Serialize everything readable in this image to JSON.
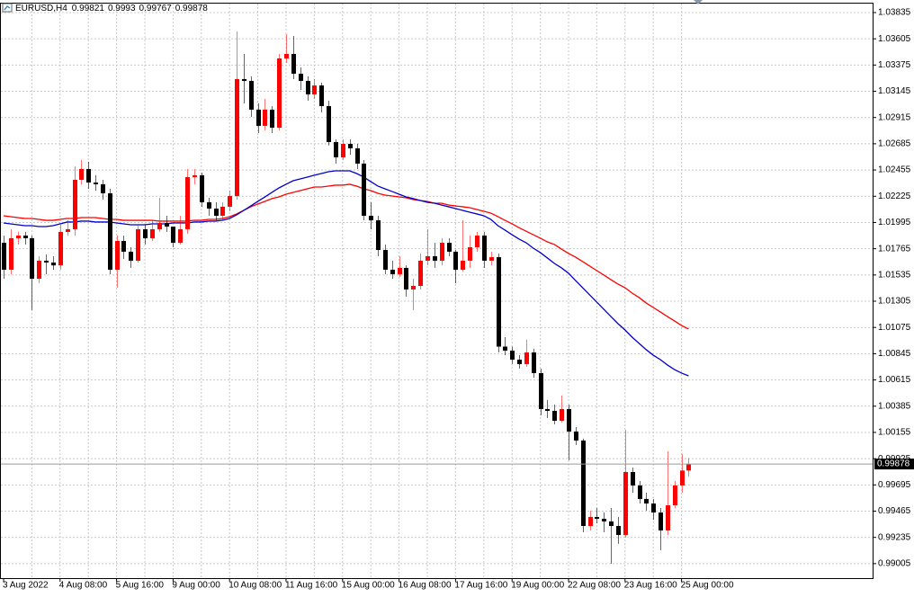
{
  "chart_data": {
    "type": "candlestick",
    "symbol": "EURUSD,H4",
    "categories": [
      "3 Aug 2022",
      null,
      null,
      null,
      null,
      null,
      null,
      null,
      "4 Aug 08:00",
      null,
      null,
      null,
      null,
      null,
      null,
      null,
      "5 Aug 16:00",
      null,
      null,
      null,
      null,
      null,
      null,
      null,
      "9 Aug 00:00",
      null,
      null,
      null,
      null,
      null,
      null,
      null,
      "10 Aug 08:00",
      null,
      null,
      null,
      null,
      null,
      null,
      null,
      "11 Aug 16:00",
      null,
      null,
      null,
      null,
      null,
      null,
      null,
      "15 Aug 00:00",
      null,
      null,
      null,
      null,
      null,
      null,
      null,
      "16 Aug 08:00",
      null,
      null,
      null,
      null,
      null,
      null,
      null,
      "17 Aug 16:00",
      null,
      null,
      null,
      null,
      null,
      null,
      null,
      "19 Aug 00:00",
      null,
      null,
      null,
      null,
      null,
      null,
      null,
      "22 Aug 08:00",
      null,
      null,
      null,
      null,
      null,
      null,
      null,
      "23 Aug 16:00",
      null,
      null,
      null,
      null,
      null,
      null,
      null,
      "25 Aug 00:00",
      null
    ],
    "open": [
      1.01817,
      1.01581,
      1.01857,
      1.0188,
      1.01857,
      1.01502,
      1.0166,
      1.01644,
      1.01619,
      1.01912,
      1.01936,
      1.02369,
      1.02464,
      1.02345,
      1.0233,
      1.02251,
      1.01581,
      1.01833,
      1.01739,
      1.0166,
      1.01936,
      1.01857,
      1.01936,
      1.01991,
      1.01959,
      1.01817,
      1.01936,
      1.02393,
      1.02409,
      1.02172,
      1.02117,
      1.02054,
      1.02133,
      1.02227,
      1.03252,
      1.03236,
      1.02984,
      1.02842,
      1.02984,
      1.02826,
      1.03433,
      1.03472,
      1.03299,
      1.03236,
      1.03118,
      1.03196,
      1.03015,
      1.027,
      1.02566,
      1.02684,
      1.02645,
      1.02511,
      1.02054,
      1.02014,
      1.01754,
      1.01581,
      1.01542,
      1.01597,
      1.01408,
      1.01439,
      1.0166,
      1.01699,
      1.0166,
      1.01817,
      1.01739,
      1.01581,
      1.0166,
      1.01778,
      1.0188,
      1.0166,
      1.01691,
      1.00907,
      1.00872,
      1.00793,
      1.00754,
      1.00856,
      1.00675,
      1.0036,
      1.00344,
      1.00257,
      1.0036,
      1.00163,
      1.00084,
      0.99335,
      0.99414,
      0.99398,
      0.99375,
      0.99335,
      0.99256,
      0.99808,
      0.9969,
      0.99572,
      0.99532,
      0.99453,
      0.99296,
      0.99516,
      0.9969,
      0.99821
    ],
    "high": [
      1.0188,
      1.01936,
      1.01912,
      1.01912,
      1.0188,
      1.01699,
      1.01715,
      1.01699,
      1.01975,
      1.02014,
      1.02487,
      1.02542,
      1.02527,
      1.02409,
      1.02369,
      1.0229,
      1.0188,
      1.0188,
      1.01778,
      1.01975,
      1.01975,
      1.02014,
      1.02211,
      1.02054,
      1.01959,
      1.02054,
      1.02464,
      1.02464,
      1.02432,
      1.02211,
      1.02172,
      1.02172,
      1.02274,
      1.03669,
      1.03472,
      1.03275,
      1.03039,
      1.03078,
      1.03015,
      1.03472,
      1.03646,
      1.0363,
      1.03354,
      1.03275,
      1.03252,
      1.0322,
      1.03062,
      1.02724,
      1.02724,
      1.02724,
      1.02684,
      1.02542,
      1.02172,
      1.02054,
      1.01802,
      1.0166,
      1.01699,
      1.01619,
      1.01502,
      1.01723,
      1.01936,
      1.01817,
      1.01857,
      1.01857,
      1.01754,
      1.02014,
      1.0188,
      1.01912,
      1.01912,
      1.01739,
      1.01723,
      1.0099,
      1.00907,
      1.00832,
      1.00967,
      1.00888,
      1.00714,
      1.00439,
      1.00399,
      1.00478,
      1.00399,
      1.00202,
      1.001,
      0.99469,
      0.99493,
      0.99453,
      0.99493,
      0.99414,
      1.00178,
      0.99847,
      0.99729,
      0.99627,
      0.99572,
      0.99493,
      0.99989,
      0.99729,
      0.99966,
      0.9993
    ],
    "low": [
      1.01502,
      1.01542,
      1.01802,
      1.01802,
      1.01227,
      1.01463,
      1.01542,
      1.01581,
      1.01581,
      1.0188,
      1.0188,
      1.0233,
      1.0229,
      1.02274,
      1.02196,
      1.01542,
      1.01423,
      1.01676,
      1.01597,
      1.01644,
      1.01802,
      1.01833,
      1.01912,
      1.01912,
      1.01778,
      1.01802,
      1.01896,
      1.0233,
      1.02133,
      1.02054,
      1.02014,
      1.02014,
      1.02093,
      1.02196,
      1.03039,
      1.02921,
      1.02779,
      1.02802,
      1.02779,
      1.02802,
      1.03393,
      1.03252,
      1.03157,
      1.03062,
      1.03078,
      1.0296,
      1.02669,
      1.02511,
      1.02542,
      1.0259,
      1.02464,
      1.02014,
      1.01936,
      1.01699,
      1.01542,
      1.01502,
      1.01518,
      1.01345,
      1.01227,
      1.01408,
      1.01619,
      1.01597,
      1.01619,
      1.01699,
      1.01463,
      1.01565,
      1.01597,
      1.01739,
      1.01597,
      1.01619,
      1.00856,
      1.00832,
      1.00754,
      1.00714,
      1.0073,
      1.00635,
      1.00305,
      1.00281,
      1.00226,
      1.00241,
      0.9991,
      1.00044,
      0.9928,
      0.99296,
      0.99359,
      0.9928,
      0.99004,
      0.99178,
      0.99233,
      0.99627,
      0.99532,
      0.99469,
      0.9939,
      0.99123,
      0.99256,
      0.99493,
      0.99627,
      0.99767
    ],
    "close": [
      1.01581,
      1.01857,
      1.0188,
      1.01857,
      1.01502,
      1.0166,
      1.01644,
      1.01619,
      1.01912,
      1.01936,
      1.02369,
      1.02464,
      1.02345,
      1.0233,
      1.02251,
      1.01581,
      1.01833,
      1.01739,
      1.0166,
      1.01936,
      1.01857,
      1.01936,
      1.01991,
      1.01959,
      1.01817,
      1.01936,
      1.02393,
      1.02409,
      1.02172,
      1.02117,
      1.02054,
      1.02133,
      1.02227,
      1.03252,
      1.03236,
      1.02984,
      1.02842,
      1.02984,
      1.02826,
      1.03433,
      1.03472,
      1.03299,
      1.03236,
      1.03118,
      1.03196,
      1.03015,
      1.027,
      1.02566,
      1.02684,
      1.02645,
      1.02511,
      1.02054,
      1.02014,
      1.01754,
      1.01581,
      1.01542,
      1.01597,
      1.01408,
      1.01439,
      1.0166,
      1.01699,
      1.0166,
      1.01817,
      1.01739,
      1.01581,
      1.0166,
      1.01778,
      1.0188,
      1.0166,
      1.01691,
      1.00907,
      1.00872,
      1.00793,
      1.00754,
      1.00856,
      1.00675,
      1.0036,
      1.00344,
      1.00257,
      1.0036,
      1.00163,
      1.00084,
      0.99335,
      0.99414,
      0.99398,
      0.99375,
      0.99335,
      0.99256,
      0.99808,
      0.9969,
      0.99572,
      0.99532,
      0.99453,
      0.99296,
      0.99516,
      0.9969,
      0.99821,
      0.99878
    ],
    "bull_color": "#ff0000",
    "bear_color": "#000000",
    "lines": [
      {
        "color": "#ff0000",
        "values": [
          1.02054,
          1.02046,
          1.02038,
          1.0203,
          1.0203,
          1.02022,
          1.02014,
          1.02014,
          1.02022,
          1.0203,
          1.0203,
          1.02038,
          1.02038,
          1.02038,
          1.0203,
          1.02022,
          1.02022,
          1.02014,
          1.02014,
          1.02014,
          1.02014,
          1.02014,
          1.02007,
          1.02007,
          1.02007,
          1.02007,
          1.02007,
          1.02014,
          1.02014,
          1.02022,
          1.02022,
          1.0203,
          1.02046,
          1.0207,
          1.02101,
          1.02133,
          1.02157,
          1.0218,
          1.02204,
          1.02219,
          1.02243,
          1.02259,
          1.02274,
          1.0229,
          1.02306,
          1.02306,
          1.02314,
          1.02322,
          1.02322,
          1.0233,
          1.02314,
          1.0229,
          1.02274,
          1.02251,
          1.02235,
          1.02227,
          1.02219,
          1.02211,
          1.02196,
          1.02188,
          1.0218,
          1.02164,
          1.02164,
          1.02148,
          1.0214,
          1.02133,
          1.02125,
          1.02109,
          1.02093,
          1.02077,
          1.02046,
          1.02014,
          1.01983,
          1.01949,
          1.01918,
          1.01888,
          1.01857,
          1.01825,
          1.01802,
          1.01762,
          1.01723,
          1.01691,
          1.01652,
          1.01613,
          1.01573,
          1.01534,
          1.01494,
          1.01455,
          1.01423,
          1.01376,
          1.01337,
          1.01289,
          1.0125,
          1.01211,
          1.01171,
          1.01132,
          1.01092,
          1.01061
        ]
      },
      {
        "color": "#0000cc",
        "values": [
          1.01991,
          1.01983,
          1.01975,
          1.01967,
          1.01967,
          1.01959,
          1.01959,
          1.01967,
          1.01983,
          1.01999,
          1.01999,
          1.02007,
          1.02007,
          1.01999,
          1.01999,
          1.01999,
          1.01991,
          1.01983,
          1.01975,
          1.01975,
          1.01975,
          1.01983,
          1.01983,
          1.01983,
          1.01991,
          1.01991,
          1.01991,
          1.01999,
          1.01999,
          1.02007,
          1.02007,
          1.02014,
          1.0203,
          1.02062,
          1.02101,
          1.0214,
          1.0218,
          1.02219,
          1.02259,
          1.02298,
          1.0233,
          1.02361,
          1.02377,
          1.02393,
          1.02409,
          1.02424,
          1.0244,
          1.02448,
          1.02448,
          1.02448,
          1.02424,
          1.02393,
          1.02353,
          1.02314,
          1.0229,
          1.02267,
          1.02243,
          1.02219,
          1.02204,
          1.02188,
          1.02172,
          1.02164,
          1.02148,
          1.02133,
          1.02117,
          1.02101,
          1.02085,
          1.0207,
          1.02054,
          1.02022,
          1.01967,
          1.01928,
          1.01888,
          1.01849,
          1.01817,
          1.0177,
          1.01731,
          1.01684,
          1.01636,
          1.01597,
          1.0155,
          1.01486,
          1.01423,
          1.0136,
          1.01297,
          1.01234,
          1.01171,
          1.01108,
          1.01053,
          1.0099,
          1.00935,
          1.0088,
          1.00832,
          1.00793,
          1.00746,
          1.00706,
          1.00675,
          1.00651
        ]
      }
    ],
    "ylim": [
      0.98878,
      1.03945
    ],
    "yticks": [
      1.03835,
      1.03605,
      1.03375,
      1.03145,
      1.02915,
      1.02685,
      1.02455,
      1.02225,
      1.01995,
      1.01765,
      1.01535,
      1.01305,
      1.01075,
      1.00845,
      1.00615,
      1.00385,
      1.00155,
      0.99925,
      0.99695,
      0.99465,
      0.99235,
      0.99005
    ],
    "grid": true
  }
}
